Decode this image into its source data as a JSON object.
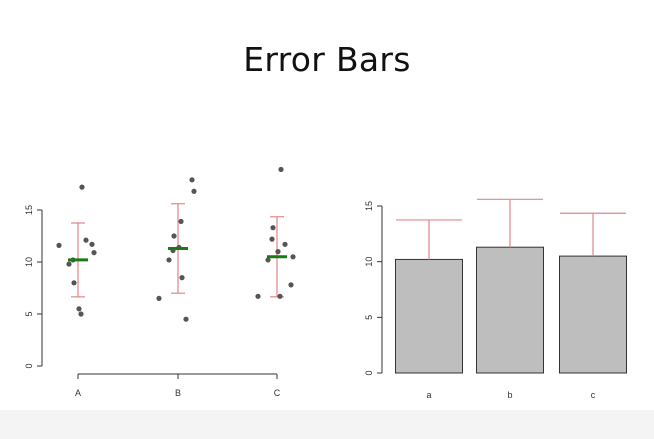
{
  "title": "Error Bars",
  "chart_data": [
    {
      "type": "scatter",
      "categories": [
        "A",
        "B",
        "C"
      ],
      "ylim": [
        0,
        15
      ],
      "yticks": [
        0,
        5,
        10,
        15
      ],
      "points": [
        [
          11.6,
          9.8,
          10.2,
          8.0,
          5.5,
          5.0,
          17.2,
          12.1,
          11.7,
          10.9
        ],
        [
          6.5,
          10.2,
          11.1,
          12.5,
          11.4,
          13.9,
          8.5,
          4.5,
          17.9,
          16.8
        ],
        [
          6.7,
          10.2,
          12.2,
          13.3,
          11.0,
          6.7,
          18.9,
          11.7,
          7.8,
          10.5
        ]
      ],
      "means": [
        10.2,
        11.3,
        10.5
      ],
      "errors": [
        3.55,
        4.3,
        3.85
      ],
      "colors": {
        "points": "#555555",
        "mean": "#1a7a1a",
        "error_bar": "#e0868a",
        "axis": "#333333"
      }
    },
    {
      "type": "bar",
      "categories": [
        "a",
        "b",
        "c"
      ],
      "values": [
        10.2,
        11.3,
        10.5
      ],
      "errors": [
        3.55,
        4.3,
        3.85
      ],
      "ylim": [
        0,
        15
      ],
      "yticks": [
        0,
        5,
        10,
        15
      ],
      "colors": {
        "bar": "#bebebe",
        "bar_border": "#333333",
        "error_bar": "#e0868a",
        "axis": "#333333"
      }
    }
  ]
}
